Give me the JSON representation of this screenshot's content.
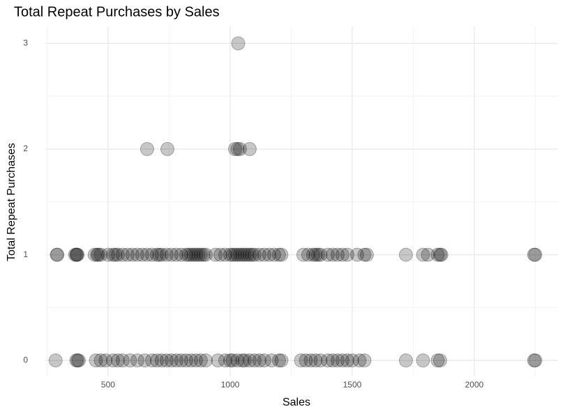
{
  "chart_data": {
    "type": "scatter",
    "title": "Total Repeat Purchases by Sales",
    "x_label": "Sales",
    "y_label": "Total Repeat Purchases",
    "x": [
      1033,
      660,
      743,
      1020,
      1030,
      1040,
      1080,
      290,
      292,
      365,
      370,
      372,
      375,
      445,
      455,
      460,
      470,
      500,
      520,
      530,
      540,
      560,
      580,
      600,
      620,
      640,
      660,
      680,
      700,
      710,
      720,
      740,
      760,
      780,
      800,
      820,
      830,
      840,
      850,
      860,
      870,
      880,
      890,
      900,
      940,
      960,
      980,
      1000,
      1010,
      1020,
      1030,
      1040,
      1050,
      1060,
      1070,
      1080,
      1090,
      1100,
      1120,
      1140,
      1160,
      1180,
      1200,
      1210,
      1300,
      1320,
      1340,
      1350,
      1360,
      1370,
      1400,
      1420,
      1440,
      1460,
      1480,
      1520,
      1550,
      1560,
      1720,
      1790,
      1810,
      1850,
      1860,
      1865,
      2245,
      2250,
      285,
      370,
      375,
      380,
      450,
      470,
      490,
      520,
      540,
      560,
      590,
      620,
      650,
      680,
      700,
      720,
      740,
      760,
      780,
      800,
      820,
      840,
      860,
      880,
      900,
      950,
      980,
      1000,
      1010,
      1030,
      1050,
      1060,
      1080,
      1100,
      1120,
      1140,
      1170,
      1200,
      1210,
      1290,
      1310,
      1330,
      1350,
      1370,
      1400,
      1420,
      1440,
      1460,
      1480,
      1500,
      1530,
      1550,
      1720,
      1790,
      1850,
      1860,
      2245,
      2250
    ],
    "values": [
      3,
      2,
      2,
      2,
      2,
      2,
      2,
      1,
      1,
      1,
      1,
      1,
      1,
      1,
      1,
      1,
      1,
      1,
      1,
      1,
      1,
      1,
      1,
      1,
      1,
      1,
      1,
      1,
      1,
      1,
      1,
      1,
      1,
      1,
      1,
      1,
      1,
      1,
      1,
      1,
      1,
      1,
      1,
      1,
      1,
      1,
      1,
      1,
      1,
      1,
      1,
      1,
      1,
      1,
      1,
      1,
      1,
      1,
      1,
      1,
      1,
      1,
      1,
      1,
      1,
      1,
      1,
      1,
      1,
      1,
      1,
      1,
      1,
      1,
      1,
      1,
      1,
      1,
      1,
      1,
      1,
      1,
      1,
      1,
      1,
      1,
      0,
      0,
      0,
      0,
      0,
      0,
      0,
      0,
      0,
      0,
      0,
      0,
      0,
      0,
      0,
      0,
      0,
      0,
      0,
      0,
      0,
      0,
      0,
      0,
      0,
      0,
      0,
      0,
      0,
      0,
      0,
      0,
      0,
      0,
      0,
      0,
      0,
      0,
      0,
      0,
      0,
      0,
      0,
      0,
      0,
      0,
      0,
      0,
      0,
      0,
      0,
      0,
      0,
      0,
      0,
      0,
      0,
      0
    ],
    "color": "#000000",
    "opacity": 0.22,
    "xlim": [
      243,
      2343
    ],
    "ylim": [
      -0.15,
      3.16
    ],
    "xticks": [
      500,
      1000,
      1500,
      2000
    ],
    "yticks": [
      0,
      1,
      2,
      3
    ],
    "x_minor_ticks": [
      250,
      750,
      1250,
      1750,
      2250
    ],
    "y_minor_ticks": [
      0.5,
      1.5,
      2.5
    ],
    "grid": true
  }
}
